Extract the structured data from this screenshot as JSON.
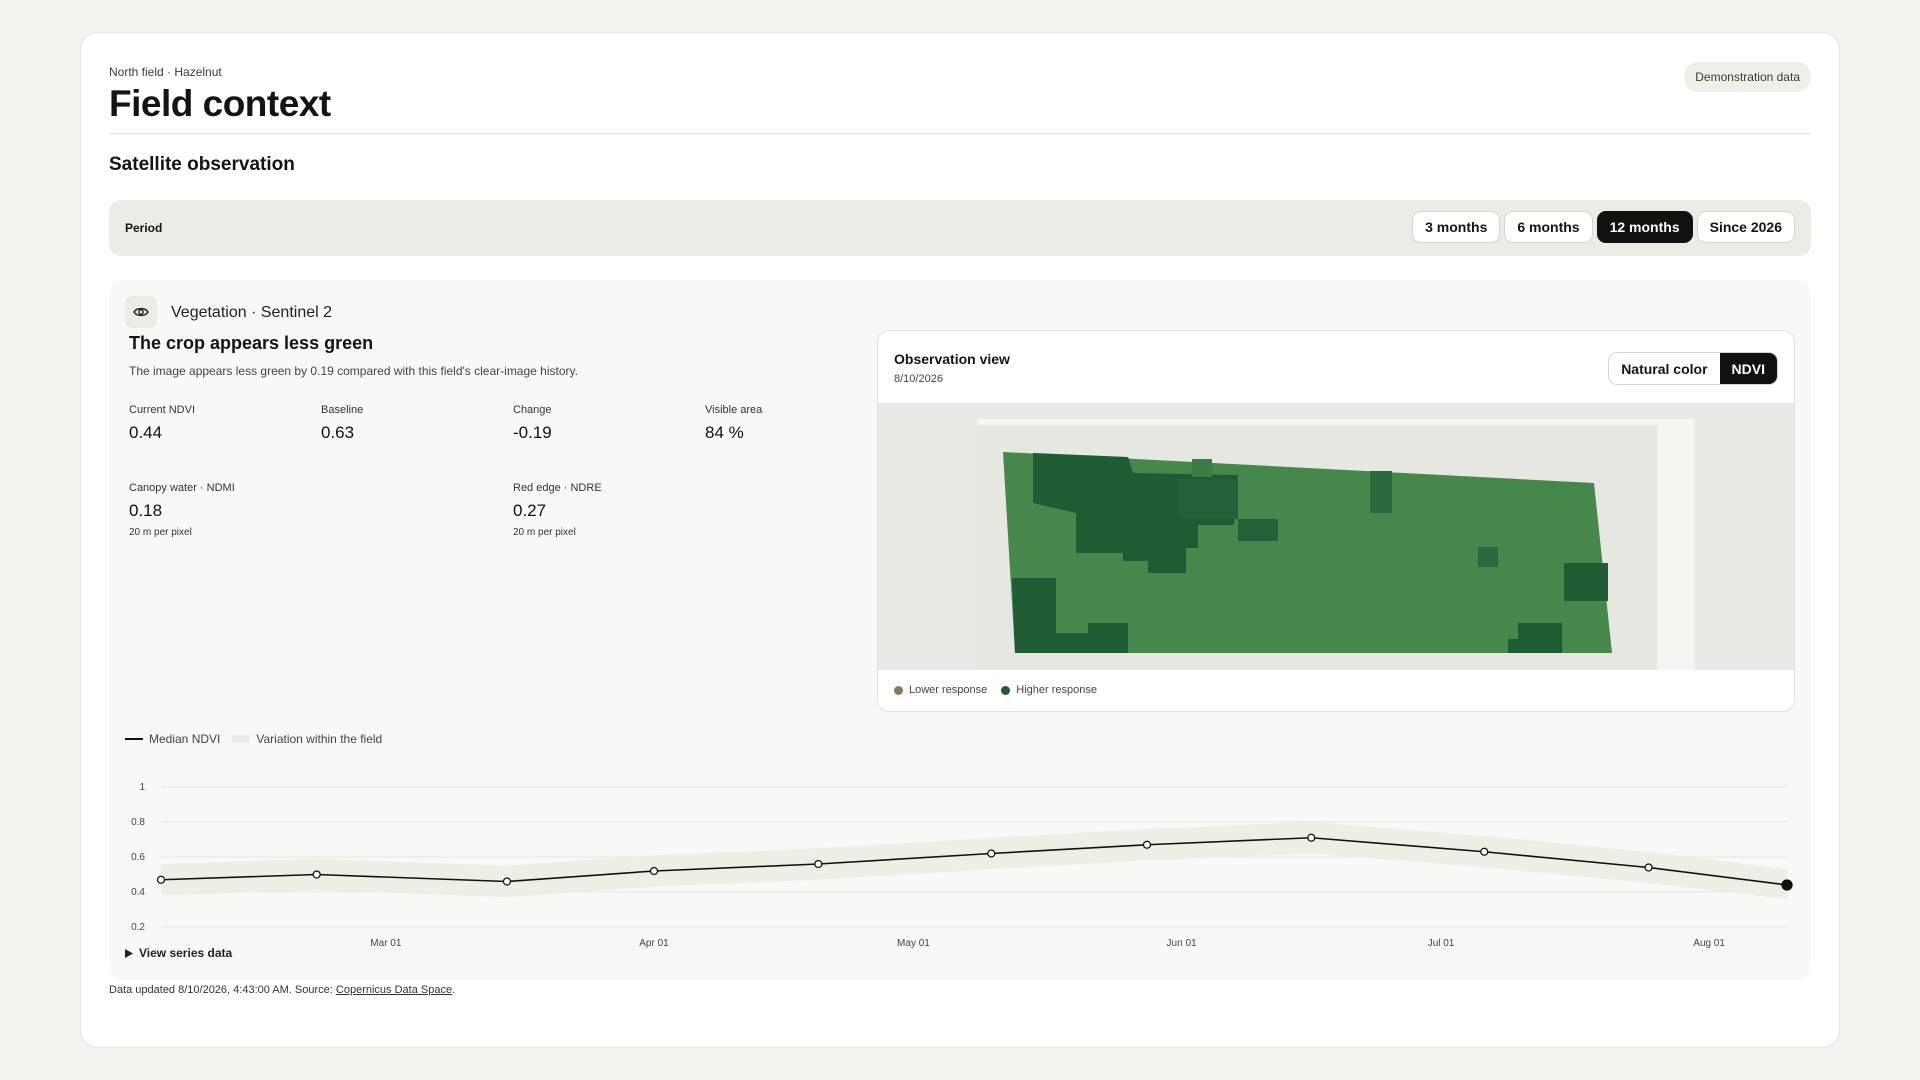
{
  "header": {
    "breadcrumb": "North field · Hazelnut",
    "title": "Field context",
    "badge": "Demonstration data"
  },
  "section": {
    "title": "Satellite observation"
  },
  "period": {
    "label": "Period",
    "options": [
      "3 months",
      "6 months",
      "12 months",
      "Since 2026"
    ],
    "selected": "12 months"
  },
  "vegetation": {
    "sensor": "Vegetation · Sentinel 2",
    "headline": "The crop appears less green",
    "summary": "The image appears less green by 0.19 compared with this field's clear-image history.",
    "metrics": [
      {
        "label": "Current NDVI",
        "value": "0.44",
        "sub": ""
      },
      {
        "label": "Baseline",
        "value": "0.63",
        "sub": ""
      },
      {
        "label": "Change",
        "value": "-0.19",
        "sub": ""
      },
      {
        "label": "Visible area",
        "value": "84 %",
        "sub": ""
      },
      {
        "label": "Canopy water · NDMI",
        "value": "0.18",
        "sub": "20 m per pixel"
      },
      {
        "label": "Red edge · NDRE",
        "value": "0.27",
        "sub": "20 m per pixel"
      }
    ]
  },
  "observation": {
    "title": "Observation view",
    "date": "8/10/2026",
    "view_options": [
      "Natural color",
      "NDVI"
    ],
    "selected_view": "NDVI",
    "legend": [
      {
        "label": "Lower response",
        "color": "#8a7a5c"
      },
      {
        "label": "Higher response",
        "color": "#1e5a32"
      }
    ]
  },
  "chart_legend": {
    "line": "Median NDVI",
    "band": "Variation within the field"
  },
  "chart_data": {
    "type": "line",
    "x_tick_labels": [
      "Mar 01",
      "Apr 01",
      "May 01",
      "Jun 01",
      "Jul 01",
      "Aug 01"
    ],
    "y_ticks": [
      1,
      0.8,
      0.6,
      0.4,
      0.2
    ],
    "ylim": [
      0.2,
      1
    ],
    "series": [
      {
        "name": "Median NDVI",
        "x": [
          "2026-02-03",
          "2026-02-21",
          "2026-03-15",
          "2026-04-01",
          "2026-04-20",
          "2026-05-10",
          "2026-05-28",
          "2026-06-16",
          "2026-07-06",
          "2026-07-25",
          "2026-08-10"
        ],
        "values": [
          0.47,
          0.5,
          0.46,
          0.52,
          0.56,
          0.62,
          0.67,
          0.71,
          0.63,
          0.54,
          0.44
        ]
      }
    ],
    "band": {
      "name": "Variation within the field",
      "low": [
        0.38,
        0.41,
        0.37,
        0.43,
        0.47,
        0.53,
        0.58,
        0.62,
        0.54,
        0.45,
        0.36
      ],
      "high": [
        0.56,
        0.59,
        0.55,
        0.61,
        0.65,
        0.71,
        0.76,
        0.8,
        0.72,
        0.63,
        0.53
      ]
    },
    "grid": true,
    "colors": {
      "line": "#111111",
      "band": "#ececE6"
    }
  },
  "series_toggle": "View series data",
  "footer": {
    "text": "Data updated 8/10/2026, 4:43:00 AM. Source: ",
    "link": "Copernicus Data Space",
    "end": "."
  }
}
